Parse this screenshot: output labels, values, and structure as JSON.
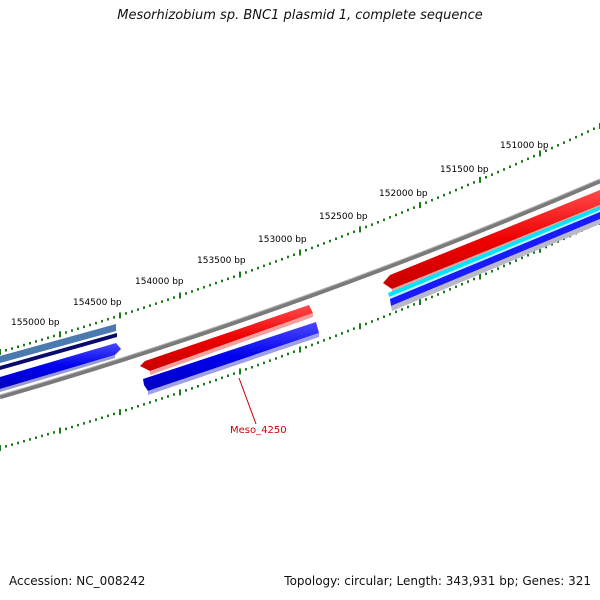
{
  "map": {
    "title": "Mesorhizobium sp. BNC1 plasmid 1, complete sequence",
    "accession_label": "Accession:",
    "accession": "NC_008242",
    "topology_label": "Topology:",
    "topology": "circular",
    "length_label": "Length:",
    "length": "343,931 bp",
    "genes_label": "Genes:",
    "genes": "321",
    "footer_right": "Topology: circular; Length: 343,931 bp; Genes: 321",
    "footer_left": "Accession: NC_008242"
  },
  "scale_labels": [
    "151000 bp",
    "151500 bp",
    "152000 bp",
    "152500 bp",
    "153000 bp",
    "153500 bp",
    "154000 bp",
    "154500 bp",
    "155000 bp"
  ],
  "highlighted_gene": {
    "label": "Meso_4250",
    "color": "#cc0000"
  },
  "colors": {
    "forward_gene": "#ff1a1a",
    "reverse_gene": "#1a1aff",
    "backbone": "#808080",
    "scale_ticks": "#1a7a1a",
    "cyan_track": "#00e5ff",
    "dark_blue_track": "#0a0a6e",
    "steel_blue_track": "#4a7ab0"
  }
}
